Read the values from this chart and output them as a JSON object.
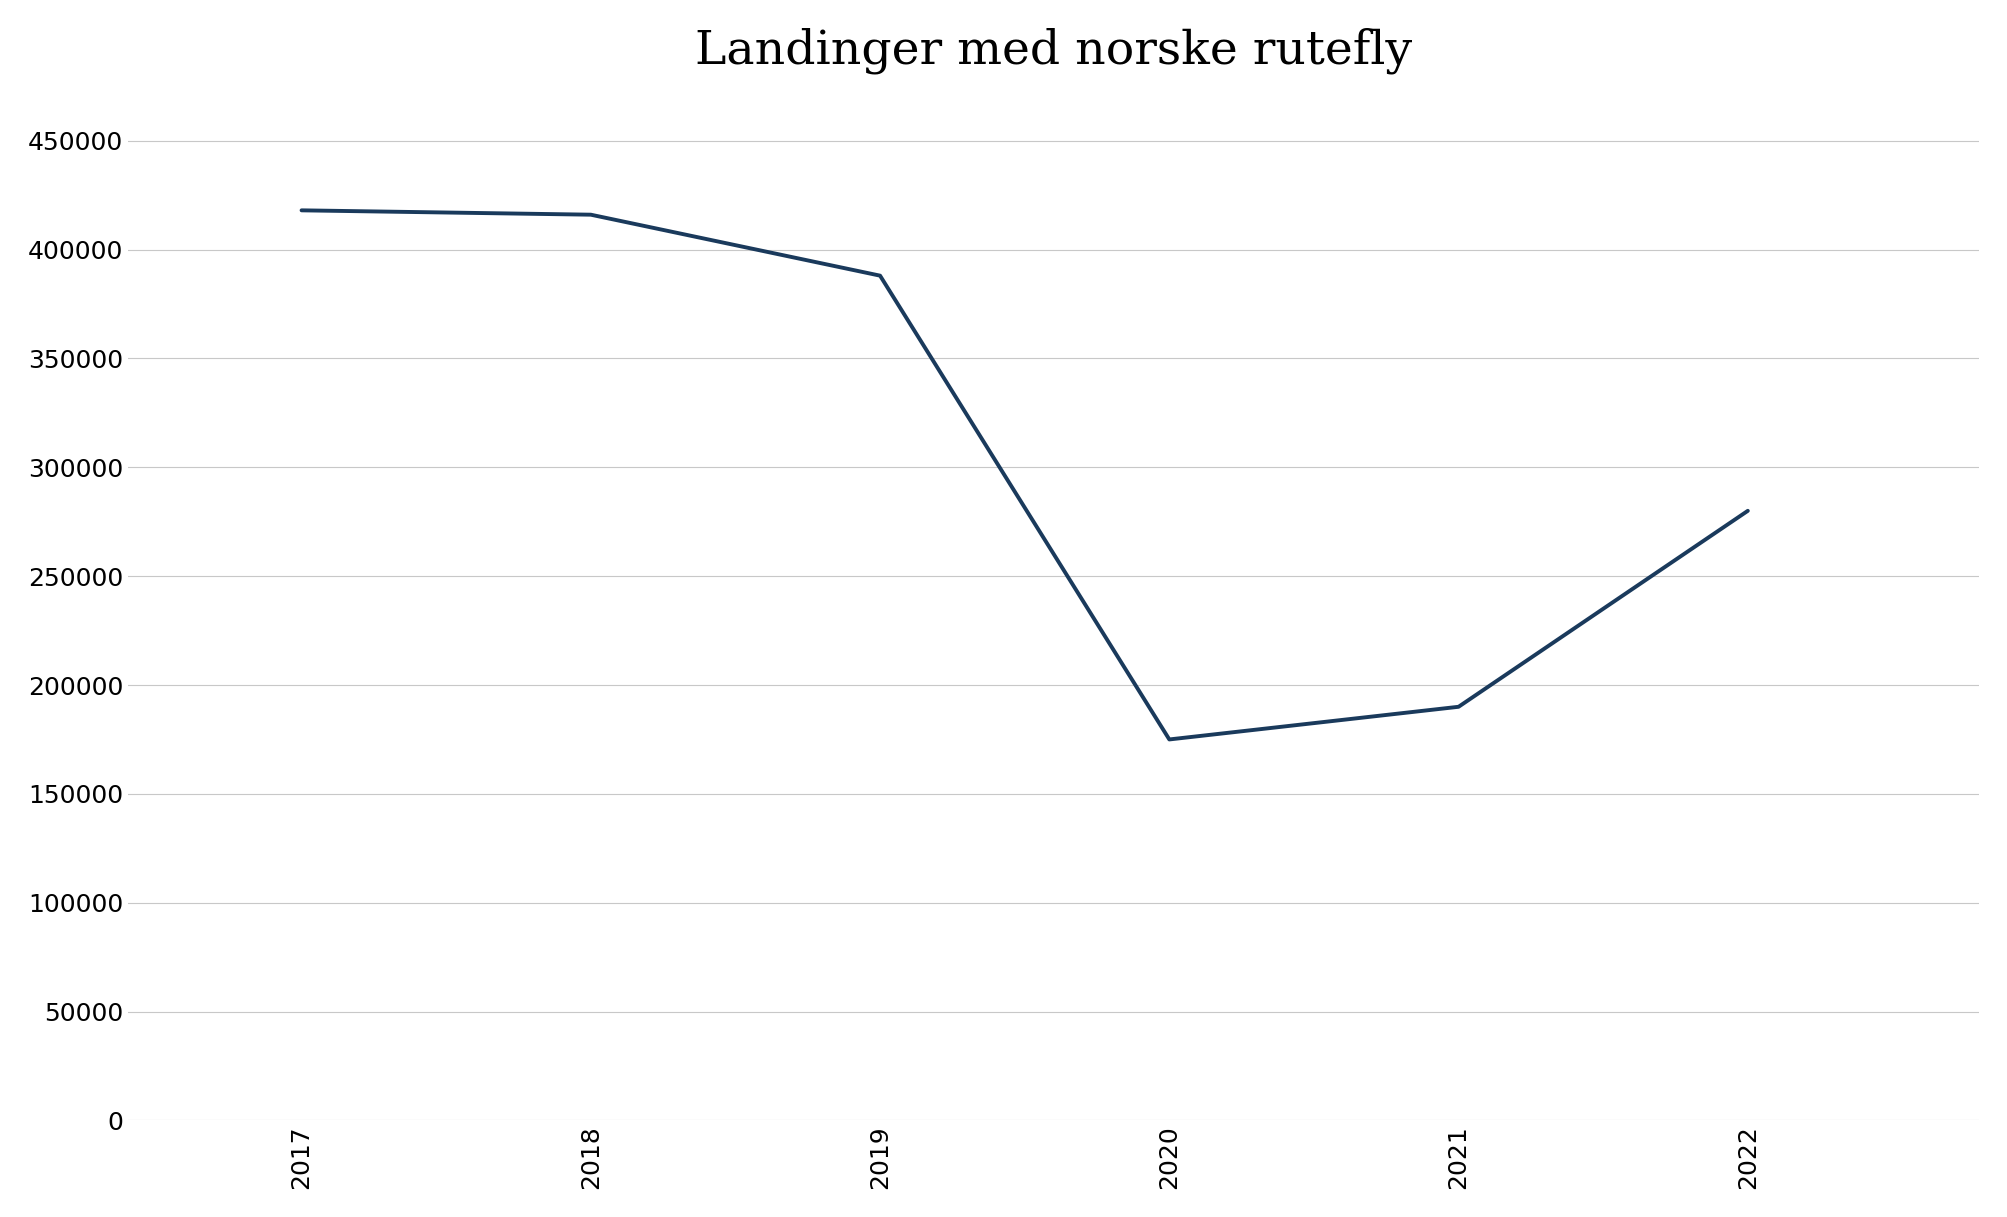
{
  "title": "Landinger med norske rutefly",
  "data_points_x": [
    2017,
    2018,
    2019,
    2020,
    2021,
    2022
  ],
  "data_points_y": [
    418000,
    416000,
    388000,
    175000,
    190000,
    280000
  ],
  "line_color": "#1a3a5c",
  "line_width": 2.8,
  "background_color": "#ffffff",
  "grid_color": "#c8c8c8",
  "ylim": [
    0,
    470000
  ],
  "yticks": [
    0,
    50000,
    100000,
    150000,
    200000,
    250000,
    300000,
    350000,
    400000,
    450000
  ],
  "xlim_left": 2016.4,
  "xlim_right": 2022.8,
  "title_fontsize": 34,
  "tick_fontsize": 18,
  "title_font": "serif"
}
